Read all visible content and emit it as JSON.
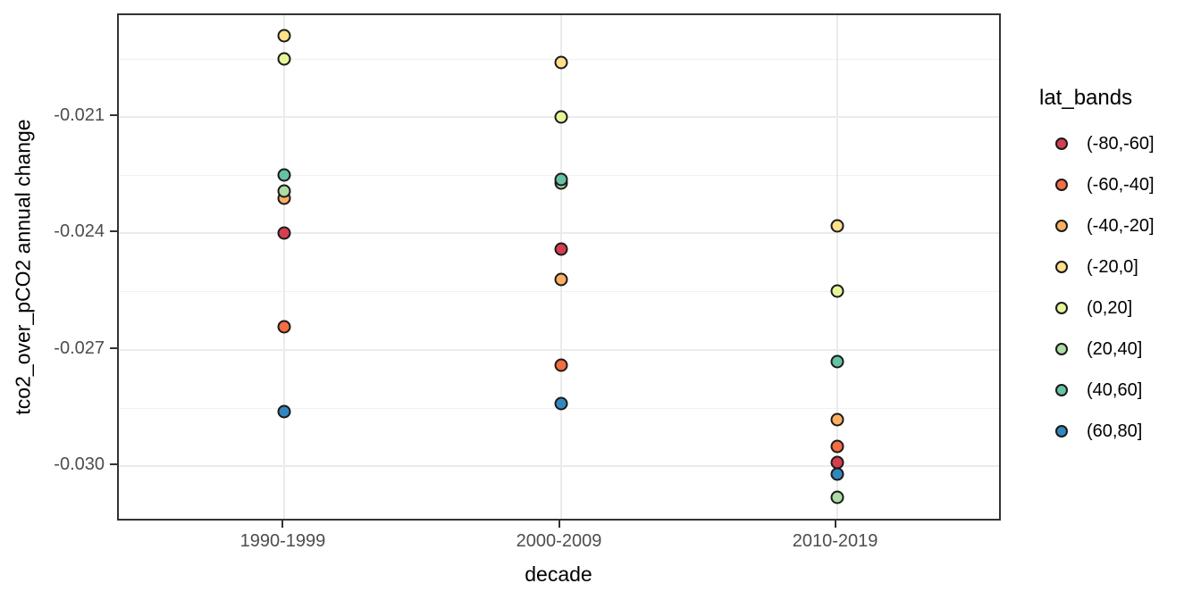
{
  "chart_data": {
    "type": "scatter",
    "title": "",
    "xlabel": "decade",
    "ylabel": "tco2_over_pCO2 annual change",
    "legend_title": "lat_bands",
    "legend_position": "right",
    "grid": "major+minor",
    "x_categories": [
      "1990-1999",
      "2000-2009",
      "2010-2019"
    ],
    "y_ticks": [
      -0.021,
      -0.024,
      -0.027,
      -0.03
    ],
    "y_tick_labels": [
      "-0.021",
      "-0.024",
      "-0.027",
      "-0.030"
    ],
    "y_minor_ticks": [
      -0.0195,
      -0.0225,
      -0.0255,
      -0.0285
    ],
    "ylim": [
      -0.0314,
      -0.0184
    ],
    "series": [
      {
        "name": "(-80,-60]",
        "color": "#d53e4f",
        "values": [
          -0.024,
          -0.0244,
          -0.0299
        ]
      },
      {
        "name": "(-60,-40]",
        "color": "#f46d43",
        "values": [
          -0.0264,
          -0.0274,
          -0.0295
        ]
      },
      {
        "name": "(-40,-20]",
        "color": "#fdae61",
        "values": [
          -0.0231,
          -0.0252,
          -0.0288
        ]
      },
      {
        "name": "(-20,0]",
        "color": "#fee08b",
        "values": [
          -0.0189,
          -0.0196,
          -0.0238
        ]
      },
      {
        "name": "(0,20]",
        "color": "#e6f598",
        "values": [
          -0.0195,
          -0.021,
          -0.0255
        ]
      },
      {
        "name": "(20,40]",
        "color": "#abdda4",
        "values": [
          -0.0229,
          -0.0227,
          -0.0308
        ]
      },
      {
        "name": "(40,60]",
        "color": "#66c2a5",
        "values": [
          -0.0225,
          -0.0226,
          -0.0273
        ]
      },
      {
        "name": "(60,80]",
        "color": "#3288bd",
        "values": [
          -0.0286,
          -0.0284,
          -0.0302
        ]
      }
    ]
  }
}
